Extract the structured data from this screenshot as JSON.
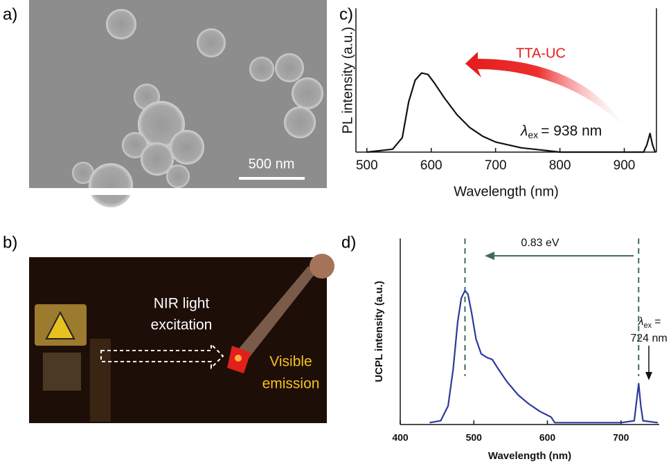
{
  "figure": {
    "panel_labels": [
      "a)",
      "b)",
      "c)",
      "d)"
    ],
    "scale_bar": "500 nm",
    "photo_texts": [
      "NIR light",
      "excitation",
      "Visible",
      "emission"
    ]
  },
  "chart_data": [
    {
      "type": "line",
      "ylabel": "PL intensity (a.u.)",
      "xlabel": "Wavelength (nm)",
      "x": [
        500,
        540,
        555,
        565,
        575,
        585,
        595,
        605,
        620,
        640,
        660,
        680,
        700,
        740,
        780,
        800,
        900,
        930,
        935,
        940,
        944,
        948
      ],
      "series": [
        {
          "color": "#111111",
          "values": [
            0,
            0.02,
            0.1,
            0.35,
            0.5,
            0.55,
            0.54,
            0.48,
            0.38,
            0.26,
            0.17,
            0.11,
            0.07,
            0.03,
            0.01,
            0,
            0,
            0,
            0.05,
            0.13,
            0.05,
            0
          ]
        }
      ],
      "xlim": [
        483,
        950
      ],
      "ylim": [
        0,
        1
      ],
      "xticks": [
        500,
        600,
        700,
        800,
        900
      ],
      "annotations": {
        "arrow_label": "TTA-UC",
        "lambda": "λ",
        "sub": "ex",
        "rest": "= 938 nm"
      }
    },
    {
      "type": "line",
      "ylabel": "UCPL intensity (a.u.)",
      "xlabel": "Wavelength (nm)",
      "x": [
        440,
        455,
        465,
        472,
        478,
        483,
        488,
        492,
        497,
        503,
        510,
        518,
        525,
        533,
        545,
        560,
        575,
        590,
        600,
        605,
        610,
        700,
        718,
        721,
        724,
        727,
        730,
        750
      ],
      "series": [
        {
          "color": "#2b3a9c",
          "values": [
            0.01,
            0.02,
            0.1,
            0.3,
            0.55,
            0.68,
            0.72,
            0.7,
            0.6,
            0.46,
            0.38,
            0.36,
            0.35,
            0.3,
            0.23,
            0.16,
            0.11,
            0.07,
            0.05,
            0.04,
            0.01,
            0.01,
            0.02,
            0.12,
            0.22,
            0.1,
            0.02,
            0.01
          ]
        }
      ],
      "xlim": [
        400,
        752
      ],
      "ylim": [
        0,
        1
      ],
      "xticks": [
        400,
        500,
        600,
        700
      ],
      "vlines": [
        488,
        724
      ],
      "annotations": {
        "energy": "0.83 eV",
        "lambda": "λ",
        "sub": "ex",
        "eq": "=",
        "excitation": "724 nm"
      }
    }
  ]
}
